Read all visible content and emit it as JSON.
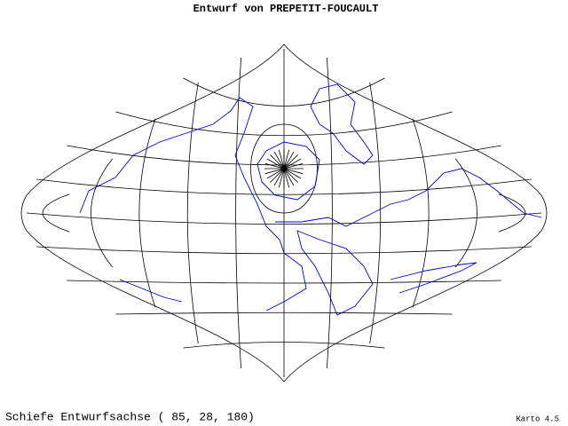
{
  "header": {
    "title": "Entwurf von PREPETIT-FOUCAULT"
  },
  "footer": {
    "caption": "Schiefe Entwurfsachse ( 85, 28, 180)",
    "credit": "Karto 4.5"
  }
}
